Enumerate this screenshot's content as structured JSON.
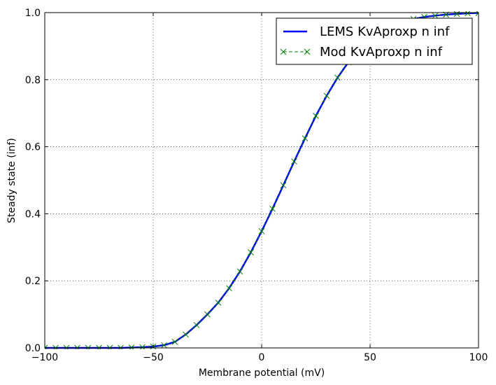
{
  "chart_data": {
    "type": "line",
    "title": "",
    "xlabel": "Membrane potential (mV)",
    "ylabel": "Steady state (inf)",
    "xlim": [
      -100,
      100
    ],
    "ylim": [
      0.0,
      1.0
    ],
    "x_ticks": [
      -100,
      -50,
      0,
      50,
      100
    ],
    "y_ticks": [
      0.0,
      0.2,
      0.4,
      0.6,
      0.8,
      1.0
    ],
    "x_tick_labels": [
      "−100",
      "−50",
      "0",
      "50",
      "100"
    ],
    "y_tick_labels": [
      "0.0",
      "0.2",
      "0.4",
      "0.6",
      "0.8",
      "1.0"
    ],
    "grid": true,
    "legend_position": "top-right",
    "series": [
      {
        "name": "LEMS KvAproxp n inf",
        "color": "#0000ff",
        "style": "solid-line",
        "x": [
          -100,
          -95,
          -90,
          -85,
          -80,
          -75,
          -70,
          -65,
          -60,
          -55,
          -50,
          -45,
          -40,
          -35,
          -30,
          -25,
          -20,
          -15,
          -10,
          -5,
          0,
          5,
          10,
          15,
          20,
          25,
          30,
          35,
          40,
          45,
          50,
          55,
          60,
          65,
          70,
          75,
          80,
          85,
          90,
          95,
          100
        ],
        "y": [
          0.0,
          0.0,
          0.0,
          0.0,
          0.0,
          0.0,
          0.0,
          0.0,
          0.001,
          0.002,
          0.004,
          0.008,
          0.018,
          0.04,
          0.068,
          0.1,
          0.135,
          0.178,
          0.228,
          0.285,
          0.348,
          0.415,
          0.485,
          0.556,
          0.625,
          0.692,
          0.752,
          0.806,
          0.852,
          0.89,
          0.92,
          0.943,
          0.96,
          0.972,
          0.981,
          0.987,
          0.991,
          0.994,
          0.996,
          0.998,
          0.999
        ]
      },
      {
        "name": "Mod KvAproxp n inf",
        "color": "#008000",
        "style": "x-markers-dashed",
        "x": [
          -100,
          -95,
          -90,
          -85,
          -80,
          -75,
          -70,
          -65,
          -60,
          -55,
          -50,
          -45,
          -40,
          -35,
          -30,
          -25,
          -20,
          -15,
          -10,
          -5,
          0,
          5,
          10,
          15,
          20,
          25,
          30,
          35,
          40,
          45,
          50,
          55,
          60,
          65,
          70,
          75,
          80,
          85,
          90,
          95,
          100
        ],
        "y": [
          0.0,
          0.0,
          0.0,
          0.0,
          0.0,
          0.0,
          0.0,
          0.0,
          0.001,
          0.002,
          0.004,
          0.008,
          0.018,
          0.04,
          0.068,
          0.1,
          0.135,
          0.178,
          0.228,
          0.285,
          0.348,
          0.415,
          0.485,
          0.556,
          0.625,
          0.692,
          0.752,
          0.806,
          0.852,
          0.89,
          0.92,
          0.943,
          0.96,
          0.972,
          0.981,
          0.987,
          0.991,
          0.994,
          0.996,
          0.998,
          0.999
        ]
      }
    ]
  }
}
